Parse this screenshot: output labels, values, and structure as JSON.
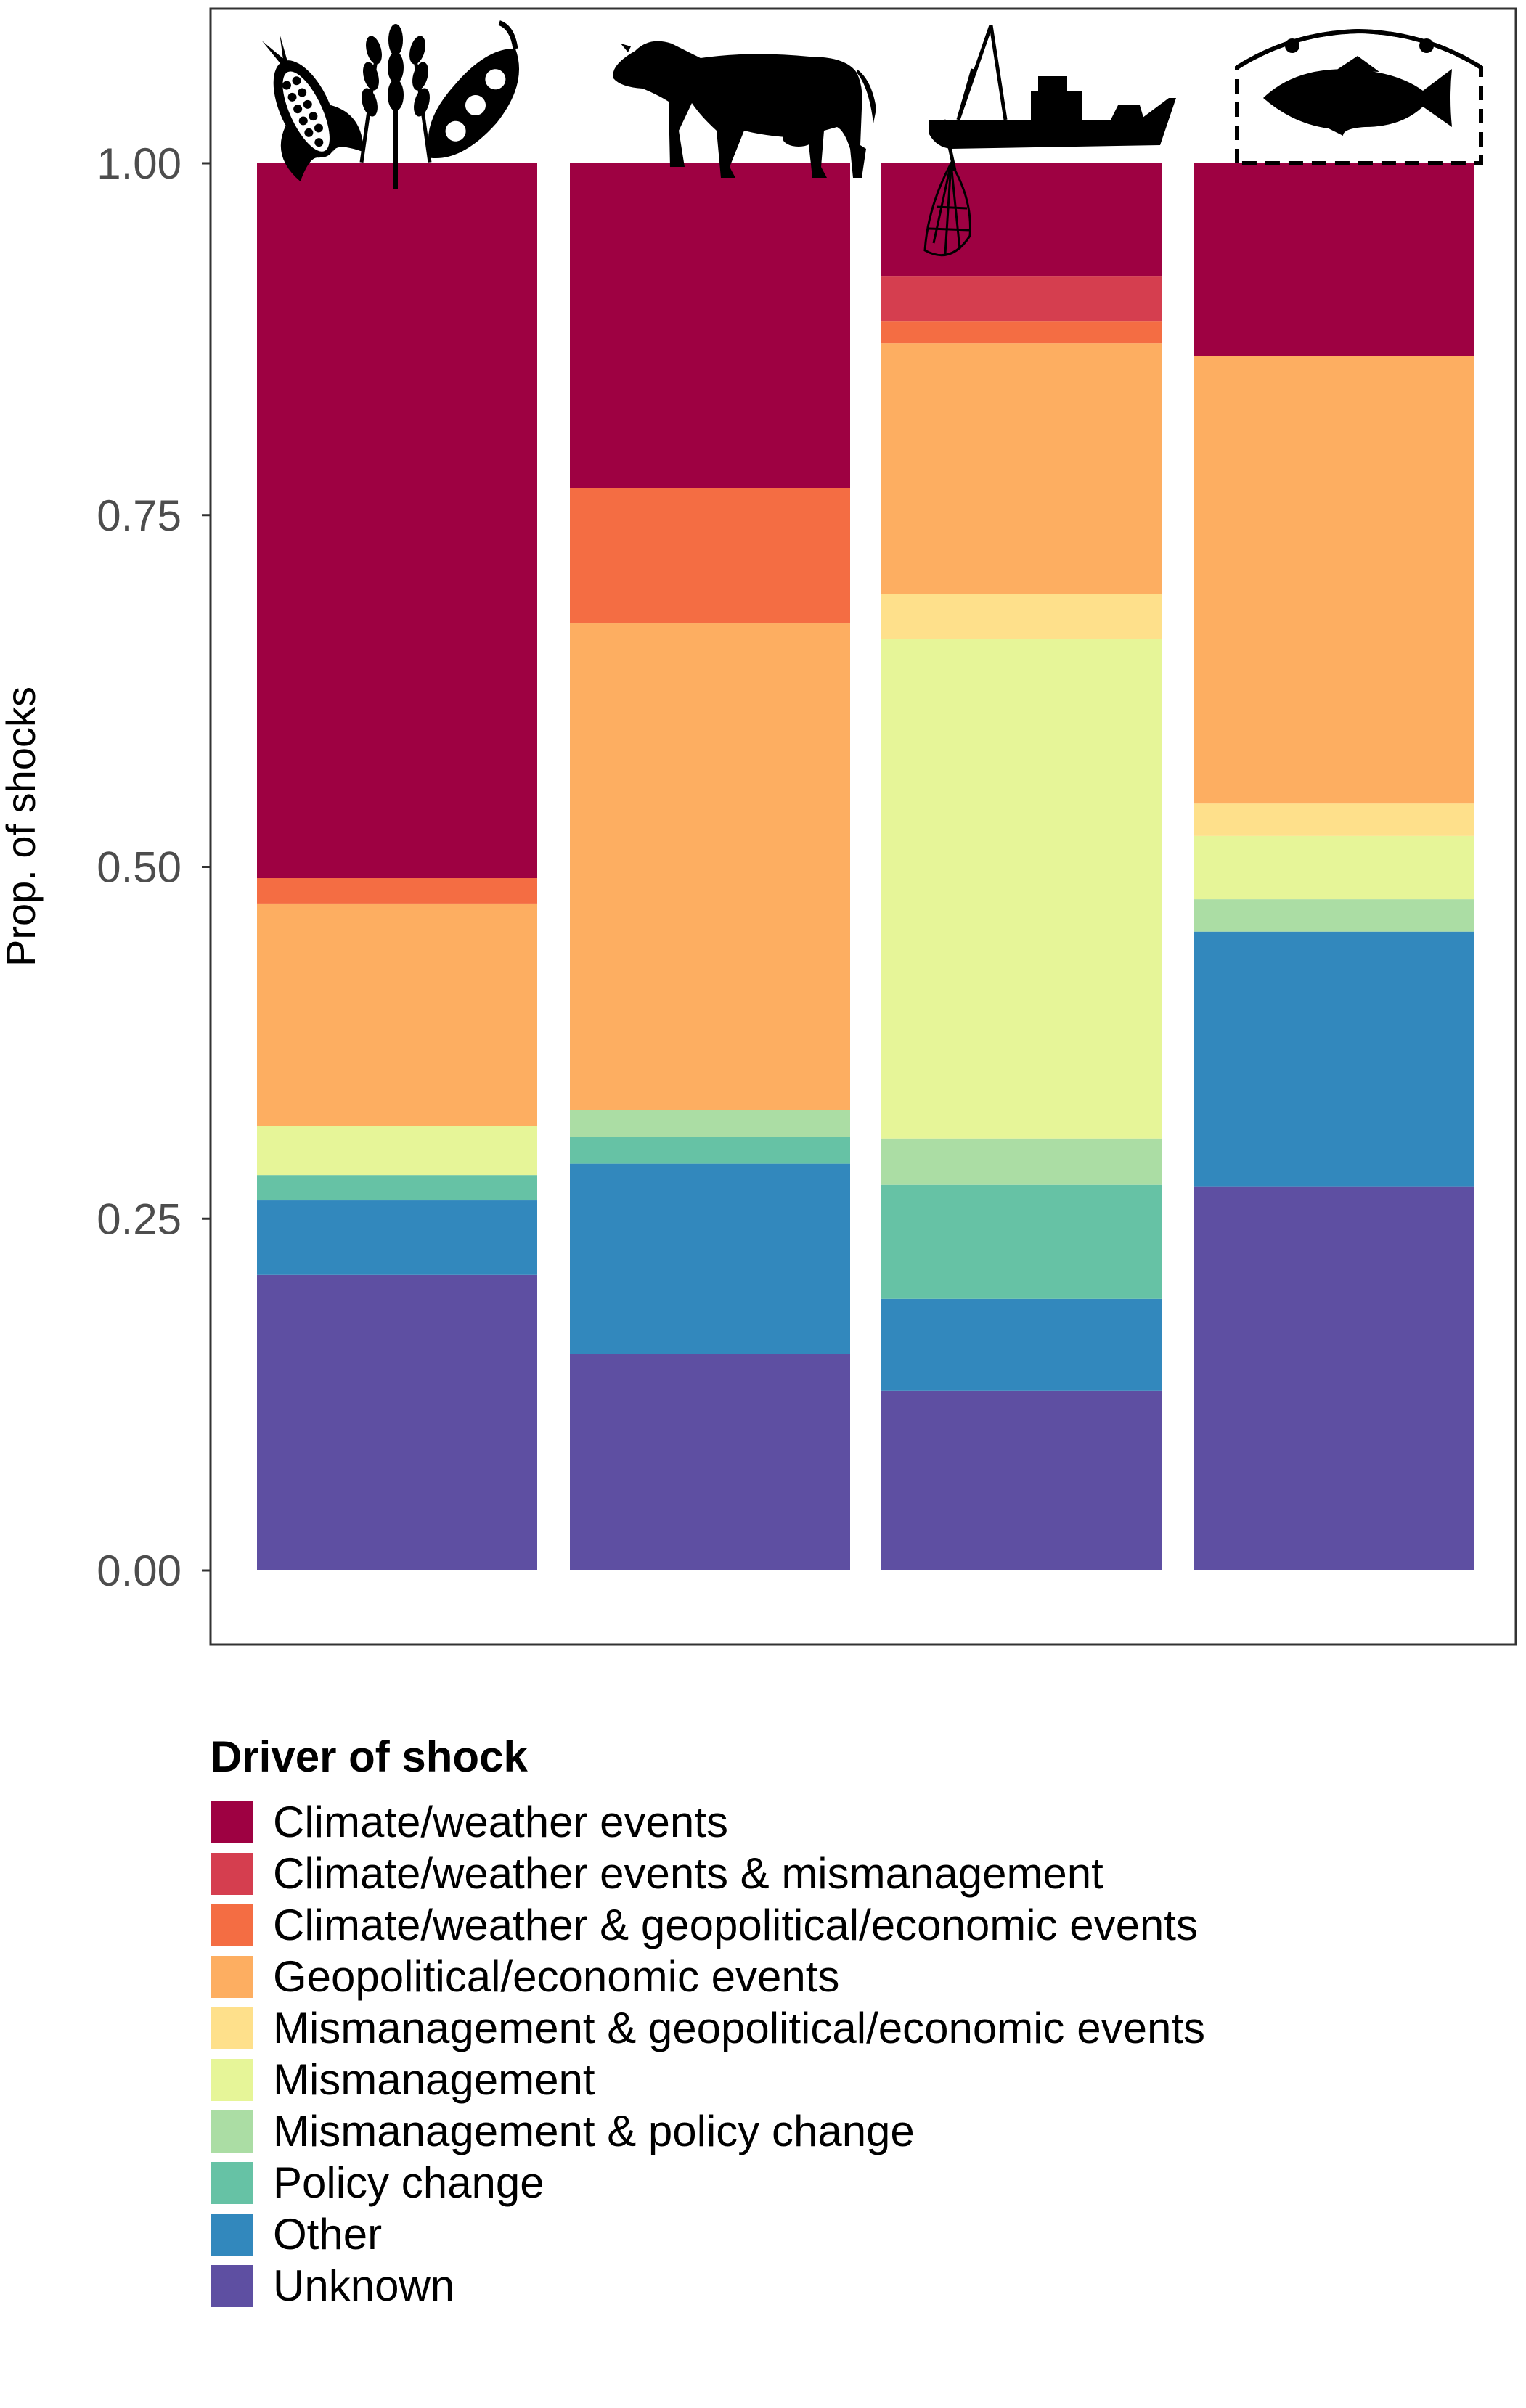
{
  "chart_data": {
    "type": "bar",
    "stacked": true,
    "ylabel": "Prop. of shocks",
    "xlabel": "",
    "ylim": [
      0,
      1.1
    ],
    "yticks": [
      0,
      0.25,
      0.5,
      0.75,
      1
    ],
    "ytick_labels": [
      "0.00",
      "0.25",
      "0.50",
      "0.75",
      "1.00"
    ],
    "grid": false,
    "categories": [
      "crops-icon",
      "livestock-icon",
      "fisheries-icon",
      "aquaculture-icon"
    ],
    "legend": {
      "title": "Driver of shock",
      "placement": "bottom"
    },
    "series": [
      {
        "name": "Unknown",
        "color": "#5E4FA2",
        "values": [
          0.21,
          0.154,
          0.128,
          0.273
        ]
      },
      {
        "name": "Other",
        "color": "#3288BD",
        "values": [
          0.053,
          0.135,
          0.065,
          0.181
        ]
      },
      {
        "name": "Policy change",
        "color": "#66C2A5",
        "values": [
          0.018,
          0.019,
          0.081,
          0.0
        ]
      },
      {
        "name": "Mismanagement & policy change",
        "color": "#ABDDA4",
        "values": [
          0.0,
          0.019,
          0.033,
          0.023
        ]
      },
      {
        "name": "Mismanagement",
        "color": "#E6F598",
        "values": [
          0.035,
          0.0,
          0.355,
          0.045
        ]
      },
      {
        "name": "Mismanagement & geopolitical/economic events",
        "color": "#FEE08B",
        "values": [
          0.0,
          0.0,
          0.032,
          0.023
        ]
      },
      {
        "name": "Geopolitical/economic events",
        "color": "#FDAE61",
        "values": [
          0.158,
          0.346,
          0.178,
          0.318
        ]
      },
      {
        "name": "Climate/weather & geopolitical/economic events",
        "color": "#F46D43",
        "values": [
          0.018,
          0.096,
          0.016,
          0.0
        ]
      },
      {
        "name": "Climate/weather events & mismanagement",
        "color": "#D53E4F",
        "values": [
          0.0,
          0.0,
          0.032,
          0.0
        ]
      },
      {
        "name": "Climate/weather events",
        "color": "#9E0142",
        "values": [
          0.508,
          0.231,
          0.08,
          0.137
        ]
      }
    ]
  }
}
